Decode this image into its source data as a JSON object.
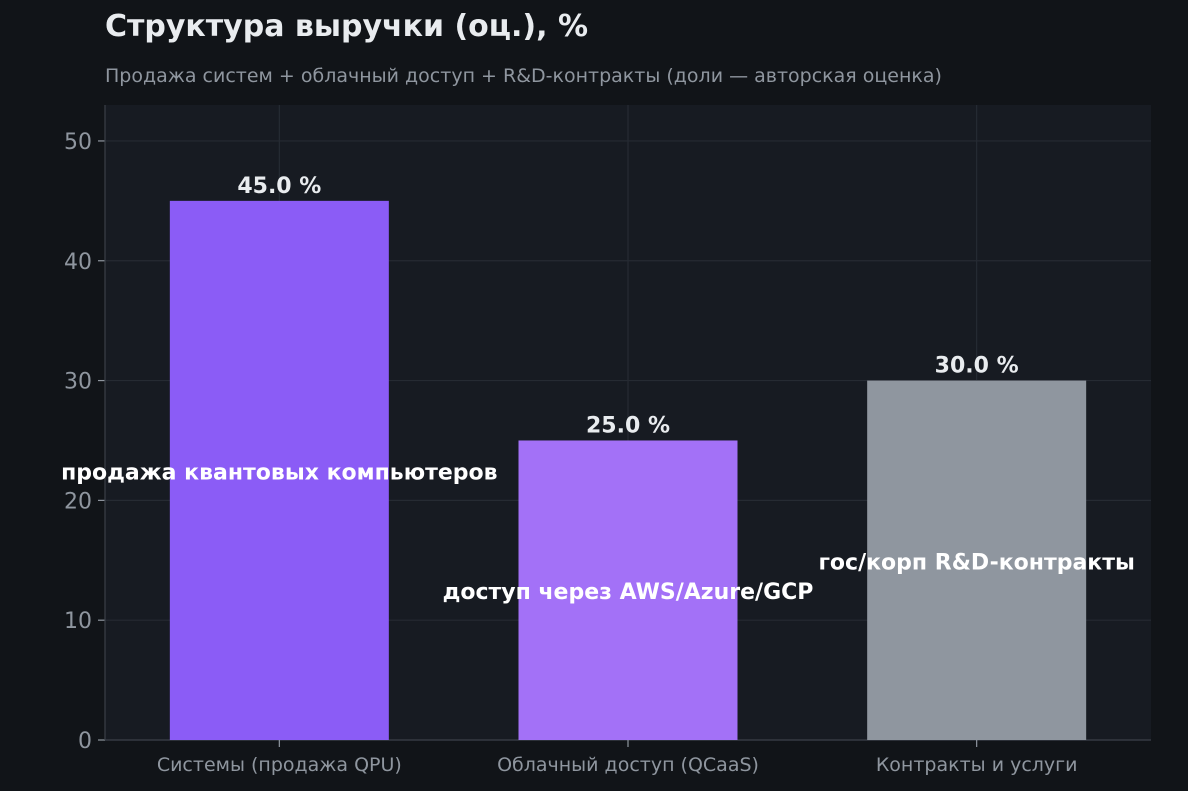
{
  "chart_data": {
    "type": "bar",
    "title": "Структура выручки (оц.), %",
    "subtitle": "Продажа систем + облачный доступ + R&D-контракты (доли — авторская оценка)",
    "xlabel": "",
    "ylabel": "",
    "categories": [
      "Системы (продажа QPU)",
      "Облачный доступ (QCaaS)",
      "Контракты и услуги"
    ],
    "values": [
      45.0,
      25.0,
      30.0
    ],
    "value_labels": [
      "45.0 %",
      "25.0 %",
      "30.0 %"
    ],
    "annotations": [
      "продажа квантовых компьютеров",
      "доступ через AWS/Azure/GCP",
      "гос/корп R&D-контракты"
    ],
    "bar_colors": [
      "#8b5cf6",
      "#a371f7",
      "#8f969f"
    ],
    "ylim": [
      0,
      53
    ],
    "yticks": [
      0,
      10,
      20,
      30,
      40,
      50
    ],
    "grid": true,
    "legend": "none",
    "colors": {
      "figure_background": "#111418",
      "plot_background": "#171b22",
      "grid": "#262b33",
      "text": "#e9ecef",
      "muted_text": "#8f969f",
      "annotation_text": "#ffffff"
    }
  }
}
